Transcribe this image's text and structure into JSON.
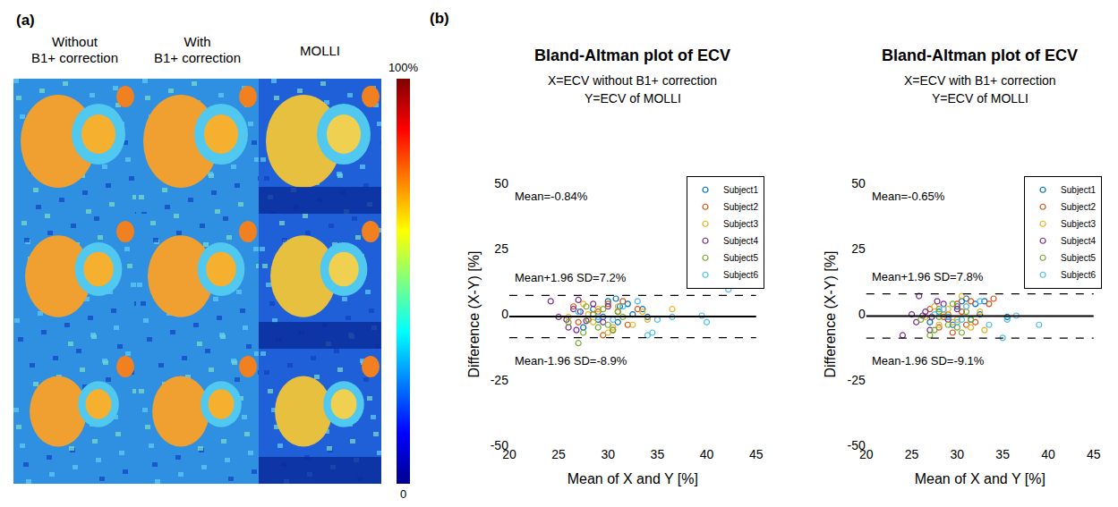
{
  "image_panel": {
    "label": "(a)",
    "columns": [
      [
        "Without",
        "B1+ correction"
      ],
      [
        "With",
        "B1+ correction"
      ],
      [
        "MOLLI"
      ]
    ],
    "colorbar": {
      "range": [
        0,
        100
      ],
      "ticks": [
        0,
        {
          "value": 100,
          "label": "100%"
        }
      ]
    }
  },
  "panel_b_label": "(b)",
  "chart_data": [
    {
      "type": "scatter",
      "title": "Bland-Altman plot of ECV",
      "subtitle": [
        "X=ECV without B1+ correction",
        "Y=ECV of MOLLI"
      ],
      "x_label": "Mean of X and Y [%]",
      "y_label": "Difference (X-Y) [%]",
      "xlim": [
        20,
        45
      ],
      "xticks": [
        20,
        25,
        30,
        35,
        40,
        45
      ],
      "ylim": [
        -50,
        50
      ],
      "yticks": [
        -50,
        -25,
        0,
        25,
        50
      ],
      "grid": false,
      "legend": "upper right",
      "marker": "open circle",
      "reference_lines": [
        {
          "value": -0.84,
          "line_style": "solid",
          "label": "Mean=-0.84%"
        },
        {
          "value": 7.2,
          "line_style": "dashed",
          "label": "Mean+1.96 SD=7.2%"
        },
        {
          "value": -8.9,
          "line_style": "dashed",
          "label": "Mean-1.96 SD=-8.9%"
        }
      ],
      "series": [
        {
          "name": "Subject1",
          "color": "#0072BD",
          "x": [
            28.5,
            29.5,
            30.8,
            31.2,
            32,
            31,
            33.5,
            30,
            29,
            27.5,
            32.5,
            34
          ],
          "values": [
            2,
            -1,
            6,
            3,
            4,
            -3,
            2,
            5,
            -2,
            -5,
            0,
            -1
          ]
        },
        {
          "name": "Subject2",
          "color": "#D95319",
          "x": [
            26.5,
            28,
            29,
            30,
            31.5,
            32,
            33,
            30.5,
            28.5,
            27,
            29.5,
            31
          ],
          "values": [
            3,
            -2,
            1,
            4,
            5,
            -4,
            2,
            -6,
            0,
            -3,
            -8,
            1
          ]
        },
        {
          "name": "Subject3",
          "color": "#EDB120",
          "x": [
            26,
            27.5,
            28.5,
            29,
            30.5,
            31,
            32.5,
            33.5,
            36.5,
            28,
            30,
            34
          ],
          "values": [
            -1,
            4,
            -3,
            2,
            -5,
            3,
            -4,
            1,
            2,
            0,
            -7,
            -2
          ]
        },
        {
          "name": "Subject4",
          "color": "#7E2F8E",
          "x": [
            24.2,
            25,
            26,
            26.5,
            27,
            27.8,
            28.5,
            29.5,
            27.2,
            25.8,
            30,
            26.8
          ],
          "values": [
            5,
            -1,
            -5,
            2,
            5.5,
            -2.5,
            4,
            -3,
            1,
            -2,
            3,
            -6
          ]
        },
        {
          "name": "Subject5",
          "color": "#77AC30",
          "x": [
            26,
            27,
            27.5,
            28,
            28.5,
            29,
            30,
            31,
            31.5,
            27.8,
            29.5,
            30.5
          ],
          "values": [
            -3,
            -11,
            -7,
            -2,
            0,
            -5,
            -4,
            1,
            -1,
            3,
            2,
            -6
          ]
        },
        {
          "name": "Subject6",
          "color": "#4DBEEE",
          "x": [
            27,
            29,
            30.5,
            31.5,
            33,
            34,
            34.5,
            35,
            36.5,
            39.5,
            40,
            42.2
          ],
          "values": [
            1,
            -1,
            -2,
            3,
            5,
            -8,
            -7,
            -2,
            -1,
            -0.5,
            -3,
            9.5
          ]
        }
      ]
    },
    {
      "type": "scatter",
      "title": "Bland-Altman plot of ECV",
      "subtitle": [
        "X=ECV with B1+ correction",
        "Y=ECV of MOLLI"
      ],
      "x_label": "Mean of X and Y [%]",
      "y_label": "Difference (X-Y) [%]",
      "xlim": [
        20,
        45
      ],
      "xticks": [
        20,
        25,
        30,
        35,
        40,
        45
      ],
      "ylim": [
        -50,
        50
      ],
      "yticks": [
        -50,
        -25,
        0,
        25,
        50
      ],
      "grid": false,
      "legend": "upper right",
      "marker": "open circle",
      "reference_lines": [
        {
          "value": -0.65,
          "line_style": "solid",
          "label": "Mean=-0.65%"
        },
        {
          "value": 7.8,
          "line_style": "dashed",
          "label": "Mean+1.96 SD=7.8%"
        },
        {
          "value": -9.1,
          "line_style": "dashed",
          "label": "Mean-1.96 SD=-9.1%"
        }
      ],
      "series": [
        {
          "name": "Subject1",
          "color": "#0072BD",
          "x": [
            28,
            29,
            30.5,
            31,
            32,
            31.5,
            33,
            30,
            29.5,
            27,
            32.5,
            35.5
          ],
          "values": [
            1,
            -1,
            5,
            6,
            4,
            -2,
            5,
            3,
            -4,
            -3,
            0,
            -1
          ]
        },
        {
          "name": "Subject2",
          "color": "#D95319",
          "x": [
            27,
            28.5,
            29,
            30,
            31.5,
            32,
            33.5,
            34,
            28,
            29.5,
            31,
            30.5
          ],
          "values": [
            2,
            -1,
            0,
            4,
            5,
            -3,
            4,
            6,
            -5,
            -7,
            -4,
            1
          ]
        },
        {
          "name": "Subject3",
          "color": "#EDB120",
          "x": [
            26.5,
            27.5,
            28,
            29,
            30,
            30.5,
            31.5,
            32.5,
            28.5,
            29.5,
            33,
            31
          ],
          "values": [
            -1,
            3,
            -4,
            2,
            -2,
            7,
            -5,
            1,
            0,
            -3,
            -6,
            3
          ]
        },
        {
          "name": "Subject4",
          "color": "#7E2F8E",
          "x": [
            24,
            25,
            25.8,
            26.5,
            27.2,
            27.8,
            28.5,
            29,
            26.2,
            25.5,
            30,
            27
          ],
          "values": [
            -8,
            0,
            7,
            1,
            -1,
            5,
            4,
            -2,
            -0.5,
            -3,
            2,
            -6
          ]
        },
        {
          "name": "Subject5",
          "color": "#77AC30",
          "x": [
            26,
            27,
            27.5,
            28,
            28.5,
            29,
            30,
            31,
            31.5,
            28,
            29.5,
            30.5
          ],
          "values": [
            -2,
            -8,
            -6,
            -1,
            0,
            -4,
            -5,
            1,
            -2,
            2,
            4,
            -7
          ]
        },
        {
          "name": "Subject6",
          "color": "#4DBEEE",
          "x": [
            27.5,
            29,
            30.5,
            31,
            32.5,
            33.5,
            35,
            35.5,
            36.5,
            39,
            28.5,
            30
          ],
          "values": [
            0,
            -1,
            -2,
            3,
            5,
            -4,
            -9,
            -2,
            -0.5,
            -4,
            2,
            -3
          ]
        }
      ]
    }
  ]
}
